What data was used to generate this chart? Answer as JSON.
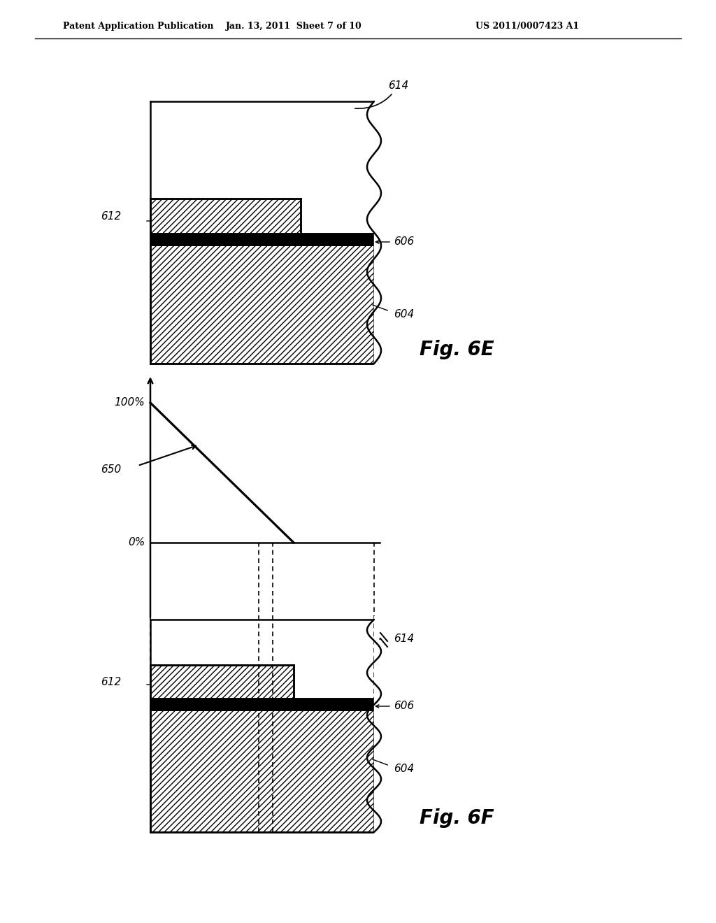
{
  "header_left": "Patent Application Publication",
  "header_center": "Jan. 13, 2011  Sheet 7 of 10",
  "header_right": "US 2011/0007423 A1",
  "fig6e_label": "Fig. 6E",
  "fig6f_label": "Fig. 6F",
  "background_color": "#ffffff",
  "line_color": "#000000",
  "label_614_6e": "614",
  "label_612_6e": "612",
  "label_606_6e": "606",
  "label_604_6e": "604",
  "label_614_6f": "614",
  "label_612_6f": "612",
  "label_606_6f": "606",
  "label_604_6f": "604",
  "label_650": "650",
  "label_100pct": "100%",
  "label_0pct": "0%"
}
